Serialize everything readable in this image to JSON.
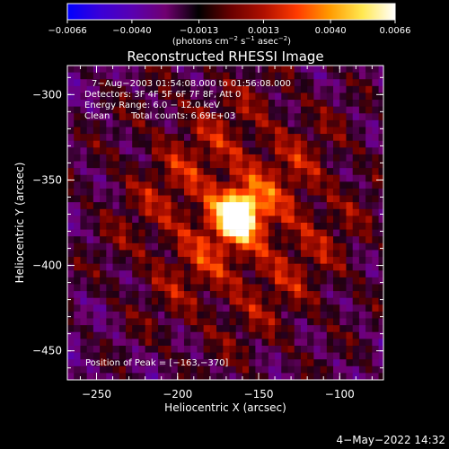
{
  "chart_data": {
    "type": "heatmap",
    "title": "Reconstructed RHESSI Image",
    "xlabel": "Heliocentric X (arcsec)",
    "ylabel": "Heliocentric Y (arcsec)",
    "xlim": [
      -268,
      -73
    ],
    "ylim": [
      -467,
      -283
    ],
    "x_ticks": [
      "−250",
      "−200",
      "−150",
      "−100"
    ],
    "x_tick_values": [
      -250,
      -200,
      -150,
      -100
    ],
    "y_ticks": [
      "−300",
      "−350",
      "−400",
      "−450"
    ],
    "y_tick_values": [
      -300,
      -350,
      -400,
      -450
    ],
    "colorbar": {
      "range": [
        -0.0066,
        0.0066
      ],
      "ticks": [
        "−0.0066",
        "−0.0040",
        "−0.0013",
        "0.0013",
        "0.0040",
        "0.0066"
      ],
      "tick_values": [
        -0.0066,
        -0.004,
        -0.0013,
        0.0013,
        0.004,
        0.0066
      ],
      "units_prefix": "(photons cm",
      "units_exp1": "−2",
      "units_mid1": " s",
      "units_exp2": "−1",
      "units_mid2": " asec",
      "units_exp3": "−2",
      "units_suffix": ")"
    },
    "annotations": {
      "time": "7−Aug−2003 01:54:08.000 to 01:56:08.000",
      "detectors": "Detectors: 3F 4F 5F 6F 7F 8F, Att 0",
      "energy": "Energy Range: 6.0 − 12.0 keV",
      "clean": "Clean",
      "counts": "Total counts: 6.69E+03",
      "peak": "Position of Peak = [−163,−370]"
    },
    "peak": [
      -163,
      -370
    ],
    "colormap": [
      "#0000ff",
      "#3a00d8",
      "#5a00b0",
      "#700070",
      "#000000",
      "#6a0000",
      "#b01000",
      "#ff3a00",
      "#ff9a00",
      "#ffe850",
      "#ffffff"
    ]
  },
  "footer": {
    "date": "4−May−2022 14:32"
  }
}
